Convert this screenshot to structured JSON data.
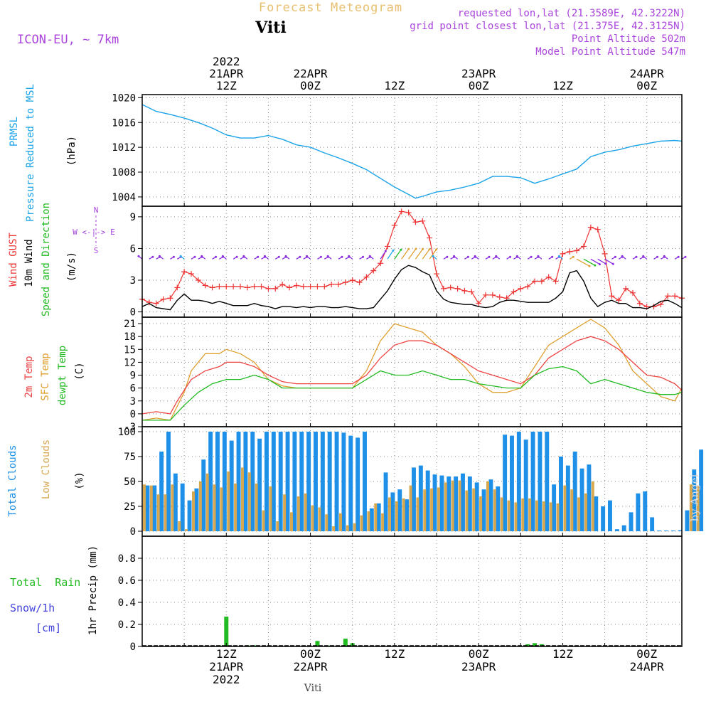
{
  "header": {
    "product_title": "Forecast Meteogram",
    "location": "Viti",
    "model": "ICON-EU, ~ 7km",
    "requested": "requested lon,lat (21.3589E, 42.3222N)",
    "gridpoint": "grid point closest lon,lat (21.375E, 42.3125N)",
    "point_altitude": "Point Altitude 502m",
    "model_altitude": "Model Point Altitude 547m",
    "watermark": "by Angel",
    "footer_location": "Viti"
  },
  "time_axis": {
    "top_labels": [
      {
        "h": 12,
        "lines": [
          "2022",
          "21APR",
          "12Z"
        ]
      },
      {
        "h": 24,
        "lines": [
          "22APR",
          "00Z"
        ]
      },
      {
        "h": 36,
        "lines": [
          "12Z"
        ]
      },
      {
        "h": 48,
        "lines": [
          "23APR",
          "00Z"
        ]
      },
      {
        "h": 60,
        "lines": [
          "12Z"
        ]
      },
      {
        "h": 72,
        "lines": [
          "24APR",
          "00Z"
        ]
      }
    ],
    "bottom_labels": [
      {
        "h": 12,
        "lines": [
          "12Z",
          "21APR",
          "2022"
        ]
      },
      {
        "h": 24,
        "lines": [
          "00Z",
          "22APR"
        ]
      },
      {
        "h": 36,
        "lines": [
          "12Z"
        ]
      },
      {
        "h": 48,
        "lines": [
          "00Z",
          "23APR"
        ]
      },
      {
        "h": 60,
        "lines": [
          "12Z"
        ]
      },
      {
        "h": 72,
        "lines": [
          "00Z",
          "24APR"
        ]
      }
    ]
  },
  "colors": {
    "pressure": "#1aa3e8",
    "gust": "#ee3333",
    "wind": "#000000",
    "temp2m": "#ee4444",
    "sfc": "#e0a030",
    "dewpt": "#22bb22",
    "total_clouds": "#1e90e8",
    "low_clouds": "#d8a850",
    "rain": "#22bb22",
    "snow": "#4444dd",
    "grid": "#888888",
    "compass": "#aa44dd",
    "title_faded": "#e8c070",
    "meta": "#aa44dd"
  },
  "panels": {
    "pressure": {
      "labels": [
        "PRMSL",
        "Pressure Reduced to MSL"
      ],
      "unit": "(hPa)"
    },
    "wind": {
      "labels": [
        "Wind GUST",
        "10m Wind",
        "Speed and Direction"
      ],
      "unit": "(m/s)",
      "compass": [
        "N",
        "W <-|-> E",
        "S"
      ]
    },
    "temp": {
      "labels": [
        "2m Temp",
        "SFC Temp",
        "dewpt Temp"
      ],
      "unit": "(C)"
    },
    "clouds": {
      "labels": [
        "Total Clouds",
        "Low Clouds"
      ],
      "unit": "(%)"
    },
    "precip": {
      "labels": [
        "Total  Rain",
        "Snow/1h",
        "[cm]"
      ],
      "unit": "1hr Precip (mm)"
    }
  },
  "chart_data": [
    {
      "type": "line",
      "panel": "pressure",
      "title": "PRMSL Pressure Reduced to MSL",
      "ylabel": "(hPa)",
      "ylim": [
        1002.5,
        1020.5
      ],
      "yticks": [
        1004,
        1008,
        1012,
        1016,
        1020
      ],
      "x_unit": "hours from 2022-04-21 00Z",
      "xlim": [
        0,
        77
      ],
      "series": [
        {
          "name": "PRMSL",
          "x": [
            0,
            2,
            4,
            6,
            8,
            10,
            12,
            14,
            16,
            18,
            20,
            22,
            24,
            26,
            28,
            30,
            32,
            34,
            36,
            38,
            39,
            40,
            42,
            44,
            46,
            48,
            50,
            52,
            54,
            56,
            58,
            60,
            62,
            64,
            66,
            68,
            70,
            72,
            74,
            76,
            77
          ],
          "values": [
            1018.9,
            1017.8,
            1017.3,
            1016.7,
            1016.0,
            1015.1,
            1014.0,
            1013.5,
            1013.5,
            1013.9,
            1013.3,
            1012.4,
            1012.0,
            1011.1,
            1010.3,
            1009.4,
            1008.4,
            1007.0,
            1005.6,
            1004.4,
            1003.8,
            1004.1,
            1004.8,
            1005.1,
            1005.6,
            1006.2,
            1007.3,
            1007.3,
            1007.1,
            1006.2,
            1006.9,
            1007.7,
            1008.5,
            1010.5,
            1011.2,
            1011.6,
            1012.2,
            1012.6,
            1013.0,
            1013.1,
            1013.0
          ]
        }
      ]
    },
    {
      "type": "line",
      "panel": "wind",
      "title": "Wind GUST / 10m Wind Speed and Direction",
      "ylabel": "(m/s)",
      "ylim": [
        -0.5,
        10
      ],
      "yticks": [
        0,
        3,
        6,
        9
      ],
      "xlim": [
        0,
        77
      ],
      "series": [
        {
          "name": "Wind GUST",
          "x": [
            0,
            1,
            2,
            3,
            4,
            5,
            6,
            7,
            8,
            9,
            10,
            11,
            12,
            13,
            14,
            15,
            16,
            17,
            18,
            19,
            20,
            21,
            22,
            23,
            24,
            25,
            26,
            27,
            28,
            29,
            30,
            31,
            32,
            33,
            34,
            35,
            36,
            37,
            38,
            39,
            40,
            41,
            42,
            43,
            44,
            45,
            46,
            47,
            48,
            49,
            50,
            51,
            52,
            53,
            54,
            55,
            56,
            57,
            58,
            59,
            60,
            61,
            62,
            63,
            64,
            65,
            66,
            67,
            68,
            69,
            70,
            71,
            72,
            73,
            74,
            75,
            76,
            77
          ],
          "values": [
            1.2,
            0.9,
            0.8,
            1.2,
            1.3,
            2.3,
            3.8,
            3.6,
            3.0,
            2.5,
            2.3,
            2.4,
            2.4,
            2.4,
            2.4,
            2.3,
            2.4,
            2.4,
            2.2,
            2.2,
            2.6,
            2.3,
            2.5,
            2.4,
            2.4,
            2.4,
            2.4,
            2.6,
            2.6,
            2.8,
            3.0,
            2.8,
            3.3,
            3.9,
            4.6,
            6.2,
            8.2,
            9.5,
            9.4,
            8.5,
            8.6,
            7.0,
            3.6,
            2.2,
            2.3,
            2.2,
            2.0,
            1.9,
            0.8,
            1.6,
            1.6,
            1.4,
            1.3,
            1.9,
            2.2,
            2.4,
            2.9,
            2.9,
            3.3,
            2.9,
            5.5,
            5.7,
            5.8,
            6.2,
            8.0,
            7.8,
            5.5,
            1.5,
            1.1,
            2.2,
            1.8,
            0.8,
            0.5,
            0.5,
            0.7,
            1.5,
            1.5,
            1.3
          ]
        },
        {
          "name": "10m Wind",
          "x": [
            0,
            1,
            2,
            3,
            4,
            5,
            6,
            7,
            8,
            9,
            10,
            11,
            12,
            13,
            14,
            15,
            16,
            17,
            18,
            19,
            20,
            21,
            22,
            23,
            24,
            25,
            26,
            27,
            28,
            29,
            30,
            31,
            32,
            33,
            34,
            35,
            36,
            37,
            38,
            39,
            40,
            41,
            42,
            43,
            44,
            45,
            46,
            47,
            48,
            49,
            50,
            51,
            52,
            53,
            54,
            55,
            56,
            57,
            58,
            59,
            60,
            61,
            62,
            63,
            64,
            65,
            66,
            67,
            68,
            69,
            70,
            71,
            72,
            73,
            74,
            75,
            76,
            77
          ],
          "values": [
            0.5,
            0.8,
            0.4,
            0.3,
            0.2,
            1.1,
            1.7,
            1.1,
            1.1,
            1.0,
            0.8,
            1.0,
            0.8,
            0.6,
            0.6,
            0.6,
            0.8,
            0.6,
            0.5,
            0.3,
            0.5,
            0.5,
            0.4,
            0.5,
            0.4,
            0.5,
            0.5,
            0.4,
            0.4,
            0.5,
            0.4,
            0.3,
            0.3,
            0.4,
            1.2,
            2.0,
            3.1,
            4.0,
            4.4,
            4.2,
            3.8,
            3.5,
            2.0,
            1.2,
            0.9,
            0.8,
            0.7,
            0.7,
            0.5,
            0.4,
            0.5,
            0.9,
            1.1,
            1.1,
            1.0,
            0.9,
            0.9,
            0.9,
            0.9,
            1.3,
            1.9,
            3.7,
            3.9,
            2.9,
            1.3,
            0.5,
            0.9,
            1.1,
            0.8,
            0.8,
            0.4,
            0.4,
            0.3,
            0.6,
            1.0,
            1.1,
            0.8,
            0.4
          ]
        }
      ]
    },
    {
      "type": "line",
      "panel": "temp",
      "title": "2m Temp / SFC Temp / dewpt Temp",
      "ylabel": "(C)",
      "ylim": [
        -3,
        22.5
      ],
      "yticks": [
        -3,
        0,
        3,
        6,
        9,
        12,
        15,
        18,
        21
      ],
      "xlim": [
        0,
        77
      ],
      "series": [
        {
          "name": "2m Temp",
          "x": [
            0,
            2,
            4,
            5,
            7,
            9,
            11,
            12,
            14,
            16,
            18,
            20,
            22,
            24,
            26,
            28,
            30,
            32,
            34,
            36,
            38,
            40,
            42,
            44,
            46,
            48,
            50,
            52,
            54,
            56,
            58,
            60,
            62,
            64,
            66,
            68,
            70,
            72,
            74,
            76,
            77
          ],
          "values": [
            0,
            0.5,
            0,
            3,
            8,
            10,
            11,
            12,
            12,
            11,
            9,
            7.5,
            7,
            7,
            7,
            7,
            7,
            9,
            13,
            16,
            17,
            17,
            16,
            14,
            12,
            10,
            9,
            8,
            7,
            9,
            13,
            15,
            17,
            18,
            17,
            15,
            12,
            9,
            8.5,
            7,
            5.5
          ]
        },
        {
          "name": "SFC Temp",
          "x": [
            0,
            2,
            4,
            6,
            7,
            9,
            11,
            12,
            14,
            16,
            18,
            20,
            22,
            24,
            26,
            28,
            30,
            32,
            34,
            36,
            38,
            40,
            42,
            44,
            46,
            48,
            50,
            52,
            54,
            56,
            58,
            60,
            62,
            64,
            66,
            68,
            70,
            72,
            74,
            76,
            77
          ],
          "values": [
            -1.5,
            -1,
            -1.5,
            5,
            10,
            14,
            14,
            15,
            14,
            12,
            8,
            6.5,
            6,
            6,
            6,
            6,
            6,
            10,
            17,
            21,
            20,
            19,
            16,
            14,
            11,
            7,
            5,
            5,
            6,
            11,
            16,
            18,
            20,
            22,
            20,
            16,
            10,
            7,
            4,
            3,
            6
          ]
        },
        {
          "name": "dewpt Temp",
          "x": [
            0,
            2,
            4,
            6,
            8,
            10,
            12,
            14,
            16,
            18,
            20,
            22,
            24,
            26,
            28,
            30,
            32,
            34,
            36,
            38,
            40,
            42,
            44,
            46,
            48,
            50,
            52,
            54,
            56,
            58,
            60,
            62,
            64,
            66,
            68,
            70,
            72,
            74,
            76,
            77
          ],
          "values": [
            -1.5,
            -1.5,
            -1.5,
            2,
            5,
            7,
            8,
            8,
            9,
            8,
            6,
            6,
            6,
            6,
            6,
            6,
            8,
            10,
            9,
            9,
            10,
            9,
            8,
            8,
            7,
            6.5,
            6,
            6,
            9,
            10.5,
            11,
            10,
            7,
            8,
            7,
            6,
            5,
            4.5,
            4.5,
            5
          ]
        }
      ]
    },
    {
      "type": "bar",
      "panel": "clouds",
      "title": "Total Clouds / Low Clouds",
      "ylabel": "(%)",
      "ylim": [
        -5,
        105
      ],
      "yticks": [
        0,
        25,
        50,
        75,
        100
      ],
      "xlim": [
        0,
        77
      ],
      "series": [
        {
          "name": "Total Clouds",
          "values": [
            46,
            46,
            80,
            100,
            58,
            48,
            31,
            43,
            72,
            100,
            100,
            100,
            91,
            100,
            100,
            100,
            93,
            100,
            100,
            100,
            100,
            100,
            100,
            100,
            100,
            100,
            100,
            100,
            99,
            96,
            94,
            100,
            23,
            28,
            59,
            39,
            42,
            32,
            64,
            66,
            61,
            57,
            56,
            55,
            55,
            58,
            55,
            49,
            42,
            52,
            45,
            97,
            96,
            100,
            92,
            100,
            100,
            100,
            47,
            75,
            66,
            80,
            63,
            67,
            35,
            25,
            31,
            2,
            6,
            19,
            38,
            40,
            14,
            0,
            0,
            0,
            1,
            21,
            62,
            82
          ]
        },
        {
          "name": "Low Clouds",
          "values": [
            47,
            46,
            37,
            37,
            47,
            10,
            2,
            40,
            50,
            58,
            47,
            44,
            60,
            48,
            64,
            59,
            48,
            21,
            45,
            10,
            37,
            19,
            35,
            38,
            26,
            24,
            17,
            5,
            18,
            6,
            8,
            16,
            20,
            28,
            18,
            34,
            30,
            33,
            46,
            34,
            42,
            43,
            44,
            49,
            51,
            51,
            41,
            43,
            35,
            50,
            42,
            34,
            31,
            29,
            33,
            33,
            31,
            30,
            29,
            28,
            46,
            42,
            34,
            38,
            50,
            0,
            0,
            0,
            0,
            0,
            0,
            0,
            0,
            0,
            0,
            0,
            0,
            0,
            47,
            46
          ]
        }
      ]
    },
    {
      "type": "bar",
      "panel": "precip",
      "title": "1hr Precip",
      "ylabel": "1hr Precip (mm)",
      "ylim": [
        0,
        1
      ],
      "yticks": [
        0,
        0.2,
        0.4,
        0.6,
        0.8
      ],
      "xlim": [
        0,
        77
      ],
      "series": [
        {
          "name": "Total Rain",
          "x": [
            11,
            12,
            15,
            16,
            25,
            27,
            29,
            30,
            55,
            56,
            57
          ],
          "values": [
            0.01,
            0.27,
            0.01,
            0.01,
            0.05,
            0.01,
            0.07,
            0.03,
            0.02,
            0.03,
            0.02
          ]
        },
        {
          "name": "Snow/1h",
          "x": [],
          "values": []
        }
      ]
    }
  ]
}
